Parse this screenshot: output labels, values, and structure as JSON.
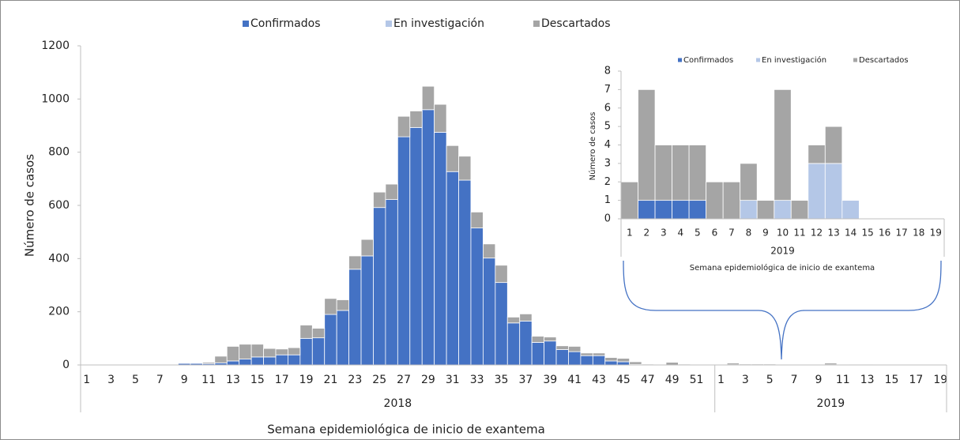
{
  "chart_data": [
    {
      "type": "bar",
      "stacked": true,
      "y_label": "Número de casos",
      "x_label": "Semana epidemiológica de inicio de exantema",
      "categories": [
        "1",
        null,
        "3",
        null,
        "5",
        null,
        "7",
        null,
        "9",
        null,
        "11",
        null,
        "13",
        null,
        "15",
        null,
        "17",
        null,
        "19",
        null,
        "21",
        null,
        "23",
        null,
        "25",
        null,
        "27",
        null,
        "29",
        null,
        "31",
        null,
        "33",
        null,
        "35",
        null,
        "37",
        null,
        "39",
        null,
        "41",
        null,
        "43",
        null,
        "45",
        null,
        "47",
        null,
        "49",
        null,
        "51",
        null,
        "1",
        null,
        "3",
        null,
        "5",
        null,
        "7",
        null,
        "9",
        null,
        "11",
        null,
        "13",
        null,
        "15",
        null,
        "17",
        null,
        "19"
      ],
      "groups": [
        {
          "label": "2018",
          "count": 52
        },
        {
          "label": "2019",
          "count": 19
        }
      ],
      "series": [
        {
          "name": "Confirmados",
          "color": "#4472c4",
          "values": [
            0,
            0,
            0,
            0,
            0,
            0,
            0,
            0,
            6,
            6,
            5,
            8,
            15,
            22,
            30,
            30,
            38,
            38,
            100,
            102,
            190,
            205,
            360,
            410,
            592,
            622,
            858,
            893,
            960,
            875,
            727,
            695,
            515,
            402,
            310,
            158,
            165,
            85,
            90,
            58,
            50,
            35,
            35,
            15,
            12,
            2,
            0,
            0,
            0,
            0,
            0,
            0,
            0,
            1,
            1,
            1,
            1,
            0,
            0,
            0,
            0,
            0,
            0,
            0,
            0,
            0,
            0,
            0,
            0,
            0,
            0
          ]
        },
        {
          "name": "En investigación",
          "color": "#b4c7e7",
          "values": [
            0,
            0,
            0,
            0,
            0,
            0,
            0,
            0,
            0,
            0,
            0,
            0,
            0,
            0,
            0,
            0,
            0,
            0,
            0,
            0,
            0,
            0,
            0,
            0,
            0,
            0,
            0,
            0,
            0,
            0,
            0,
            0,
            0,
            0,
            0,
            0,
            0,
            0,
            0,
            0,
            0,
            0,
            0,
            0,
            0,
            0,
            0,
            0,
            0,
            0,
            0,
            0,
            0,
            0,
            0,
            0,
            0,
            0,
            0,
            1,
            0,
            1,
            0,
            3,
            3,
            1,
            0,
            0,
            0,
            0,
            0
          ]
        },
        {
          "name": "Descartados",
          "color": "#a5a5a5",
          "values": [
            0,
            0,
            0,
            0,
            0,
            0,
            0,
            0,
            2,
            2,
            5,
            25,
            55,
            56,
            48,
            32,
            22,
            27,
            50,
            36,
            60,
            40,
            50,
            62,
            58,
            58,
            77,
            62,
            88,
            105,
            98,
            90,
            60,
            53,
            65,
            22,
            27,
            23,
            15,
            14,
            20,
            10,
            10,
            13,
            13,
            10,
            3,
            2,
            10,
            3,
            2,
            1,
            2,
            6,
            3,
            3,
            3,
            2,
            2,
            2,
            1,
            6,
            1,
            1,
            2,
            0,
            0,
            0,
            0,
            0,
            0
          ]
        }
      ],
      "ylim": [
        0,
        1200
      ],
      "yticks": [
        0,
        200,
        400,
        600,
        800,
        1000,
        1200
      ]
    },
    {
      "type": "bar",
      "stacked": true,
      "y_label": "Número de casos",
      "x_label": "Semana epidemiológica de inicio de exantema",
      "categories": [
        "1",
        "2",
        "3",
        "4",
        "5",
        "6",
        "7",
        "8",
        "9",
        "10",
        "11",
        "12",
        "13",
        "14",
        "15",
        "16",
        "17",
        "18",
        "19"
      ],
      "groups": [
        {
          "label": "2019",
          "count": 19
        }
      ],
      "series": [
        {
          "name": "Confirmados",
          "color": "#4472c4",
          "values": [
            0,
            1,
            1,
            1,
            1,
            0,
            0,
            0,
            0,
            0,
            0,
            0,
            0,
            0,
            0,
            0,
            0,
            0,
            0
          ]
        },
        {
          "name": "En investigación",
          "color": "#b4c7e7",
          "values": [
            0,
            0,
            0,
            0,
            0,
            0,
            0,
            1,
            0,
            1,
            0,
            3,
            3,
            1,
            0,
            0,
            0,
            0,
            0
          ]
        },
        {
          "name": "Descartados",
          "color": "#a5a5a5",
          "values": [
            2,
            6,
            3,
            3,
            3,
            2,
            2,
            2,
            1,
            6,
            1,
            1,
            2,
            0,
            0,
            0,
            0,
            0,
            0
          ]
        }
      ],
      "ylim": [
        0,
        8
      ],
      "yticks": [
        0,
        1,
        2,
        3,
        4,
        5,
        6,
        7,
        8
      ]
    }
  ]
}
